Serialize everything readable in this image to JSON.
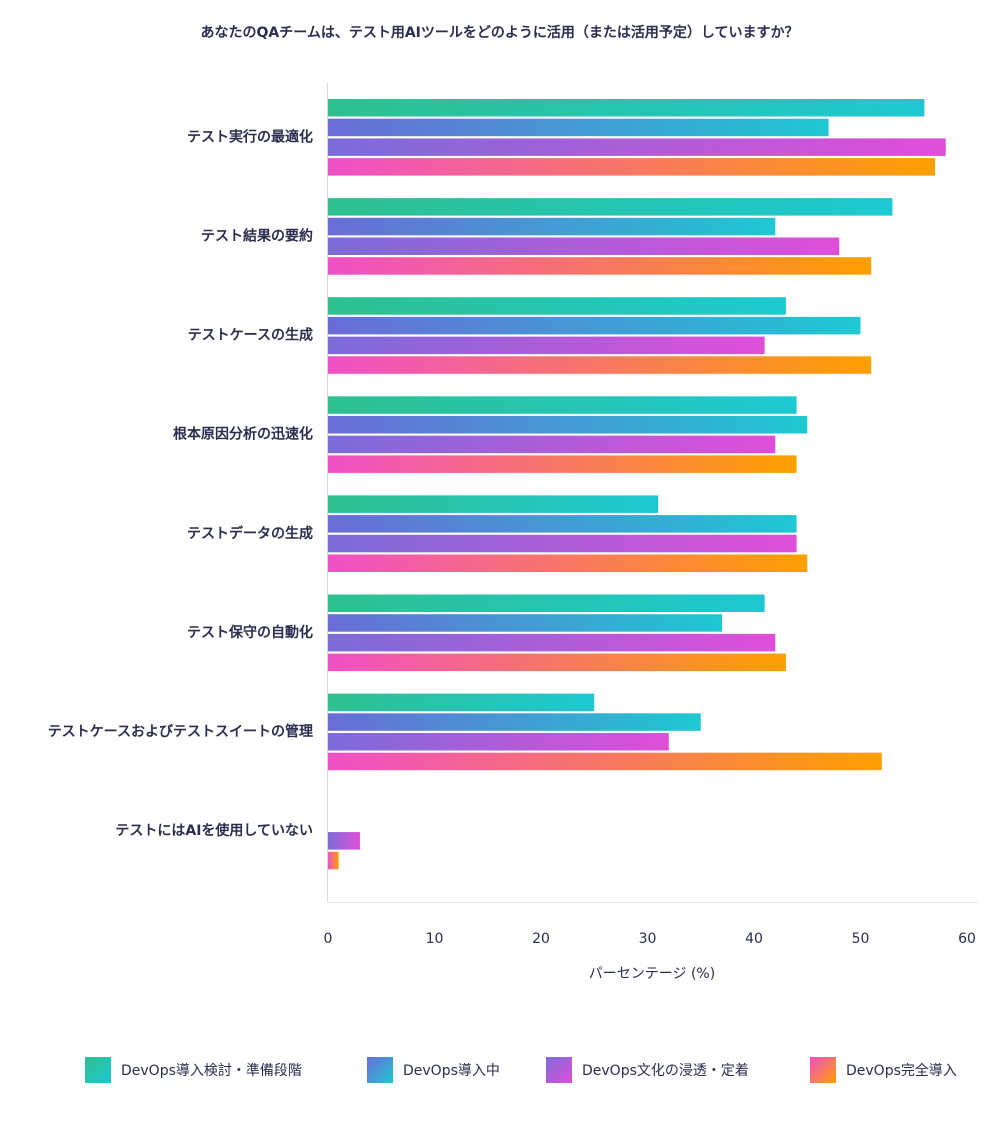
{
  "chart_data": {
    "type": "bar",
    "orientation": "horizontal",
    "title": "あなたのQAチームは、テスト用AIツールをどのように活用（または活用予定）していますか？",
    "xlabel": "パーセンテージ (%)",
    "ylabel": "",
    "xlim": [
      0,
      60
    ],
    "xticks": [
      "0",
      "10",
      "20",
      "30",
      "40",
      "50",
      "60"
    ],
    "grid": false,
    "legend_position": "bottom",
    "categories": [
      "テスト実行の最適化",
      "テスト結果の要約",
      "テストケースの生成",
      "根本原因分析の迅速化",
      "テストデータの生成",
      "テスト保守の自動化",
      "テストケースおよびテストスイートの管理",
      "テストにはAIを使用していない"
    ],
    "series": [
      {
        "name": "DevOps導入検討・準備段階",
        "values": [
          56,
          53,
          43,
          44,
          31,
          41,
          25,
          0
        ],
        "color_from": "#2ec08f",
        "color_to": "#1ec8d2"
      },
      {
        "name": "DevOps導入中",
        "values": [
          47,
          42,
          50,
          45,
          44,
          37,
          35,
          0
        ],
        "color_from": "#6a6cd6",
        "color_to": "#1ec8d2"
      },
      {
        "name": "DevOps文化の浸透・定着",
        "values": [
          58,
          48,
          41,
          42,
          44,
          42,
          32,
          3
        ],
        "color_from": "#7b6cd8",
        "color_to": "#e04ed8"
      },
      {
        "name": "DevOps完全導入",
        "values": [
          57,
          51,
          51,
          44,
          45,
          43,
          52,
          1
        ],
        "color_from": "#f04fc8",
        "color_to": "#ffa000"
      }
    ]
  }
}
